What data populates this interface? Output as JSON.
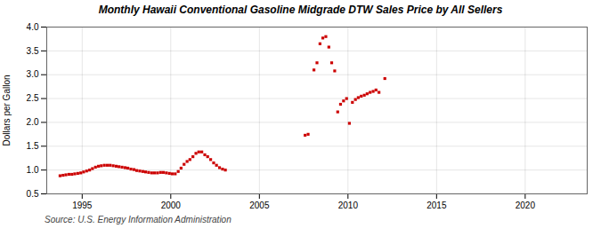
{
  "chart_data": {
    "type": "scatter",
    "title": "Monthly Hawaii Conventional Gasoline Midgrade DTW Sales Price by All Sellers",
    "ylabel": "Dollars per Gallon",
    "source": "Source: U.S. Energy Information Administration",
    "color": "#cc0000",
    "marker": "square",
    "grid": true,
    "xlim": [
      1993.0,
      2023.5
    ],
    "ylim": [
      0.5,
      4.0
    ],
    "xticks": [
      1995,
      2000,
      2005,
      2010,
      2015,
      2020
    ],
    "yticks": [
      0.5,
      {
        "value": 1.0,
        "label": "1.0"
      },
      1.5,
      {
        "value": 2.0,
        "label": "2.0"
      },
      2.5,
      {
        "value": 3.0,
        "label": "3.0"
      },
      3.5,
      {
        "value": 4.0,
        "label": "4.0"
      }
    ],
    "x": [
      1993.75,
      1993.92,
      1994.08,
      1994.25,
      1994.42,
      1994.58,
      1994.75,
      1994.92,
      1995.08,
      1995.25,
      1995.42,
      1995.58,
      1995.75,
      1995.92,
      1996.08,
      1996.25,
      1996.42,
      1996.58,
      1996.75,
      1996.92,
      1997.08,
      1997.25,
      1997.42,
      1997.58,
      1997.75,
      1997.92,
      1998.08,
      1998.25,
      1998.42,
      1998.58,
      1998.75,
      1998.92,
      1999.08,
      1999.25,
      1999.42,
      1999.58,
      1999.75,
      1999.92,
      2000.08,
      2000.25,
      2000.42,
      2000.58,
      2000.75,
      2000.92,
      2001.08,
      2001.25,
      2001.42,
      2001.58,
      2001.75,
      2001.92,
      2002.08,
      2002.25,
      2002.42,
      2002.58,
      2002.75,
      2002.92,
      2003.08,
      2007.58,
      2007.75,
      2008.08,
      2008.25,
      2008.42,
      2008.58,
      2008.75,
      2008.92,
      2009.08,
      2009.25,
      2009.42,
      2009.58,
      2009.75,
      2009.92,
      2010.08,
      2010.25,
      2010.42,
      2010.58,
      2010.75,
      2010.92,
      2011.08,
      2011.25,
      2011.42,
      2011.58,
      2011.75,
      2012.08
    ],
    "values": [
      0.88,
      0.89,
      0.9,
      0.91,
      0.91,
      0.92,
      0.93,
      0.94,
      0.96,
      0.98,
      1.0,
      1.03,
      1.06,
      1.08,
      1.09,
      1.1,
      1.1,
      1.1,
      1.09,
      1.08,
      1.07,
      1.06,
      1.05,
      1.04,
      1.02,
      1.01,
      0.99,
      0.98,
      0.97,
      0.96,
      0.95,
      0.94,
      0.94,
      0.94,
      0.95,
      0.95,
      0.94,
      0.93,
      0.92,
      0.92,
      0.97,
      1.04,
      1.12,
      1.18,
      1.22,
      1.28,
      1.35,
      1.38,
      1.38,
      1.32,
      1.28,
      1.22,
      1.15,
      1.1,
      1.05,
      1.02,
      1.0,
      1.73,
      1.75,
      3.1,
      3.25,
      3.65,
      3.77,
      3.8,
      3.58,
      3.25,
      3.08,
      2.22,
      2.38,
      2.45,
      2.5,
      1.98,
      2.42,
      2.48,
      2.52,
      2.55,
      2.57,
      2.6,
      2.63,
      2.65,
      2.68,
      2.63,
      2.92
    ]
  }
}
